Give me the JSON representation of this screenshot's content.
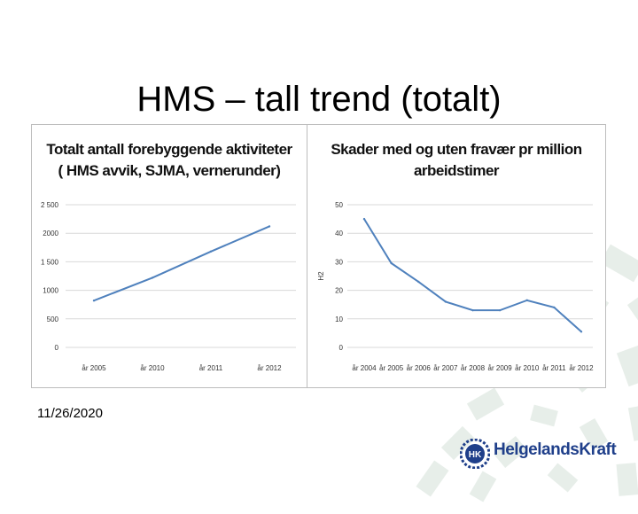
{
  "slide": {
    "title": "HMS – tall trend (totalt)",
    "date": "11/26/2020"
  },
  "logo": {
    "text": "HelgelandsKraft",
    "tagline": "",
    "monogram": "HK"
  },
  "colors": {
    "line": "#4f81bd",
    "grid": "#d9d9d9",
    "deco": "#e7eee9",
    "logo": "#1f3f8a"
  },
  "chart_data": [
    {
      "type": "line",
      "title_line1": "Totalt antall forebyggende aktiviteter",
      "title_line2": "( HMS avvik, SJMA, vernerunder)",
      "categories": [
        "år 2005",
        "år 2010",
        "år 2011",
        "år 2012"
      ],
      "y_ticks": [
        "2 500",
        "2000",
        "1 500",
        "1000",
        "500",
        "0"
      ],
      "values": [
        820,
        1220,
        1680,
        2120
      ],
      "ylim": [
        0,
        2500
      ],
      "ylabel": "",
      "grid": true
    },
    {
      "type": "line",
      "title_line1": "Skader med og uten fravær pr million",
      "title_line2": "arbeidstimer",
      "categories": [
        "år 2004",
        "år 2005",
        "år 2006",
        "år 2007",
        "år 2008",
        "år 2009",
        "år 2010",
        "år 2011",
        "år 2012"
      ],
      "y_ticks": [
        "50",
        "40",
        "30",
        "20",
        "10",
        "0"
      ],
      "values": [
        45,
        29.5,
        23,
        16,
        13,
        13,
        16.5,
        14,
        5.5
      ],
      "ylim": [
        0,
        50
      ],
      "ylabel": "H2",
      "grid": true
    }
  ]
}
